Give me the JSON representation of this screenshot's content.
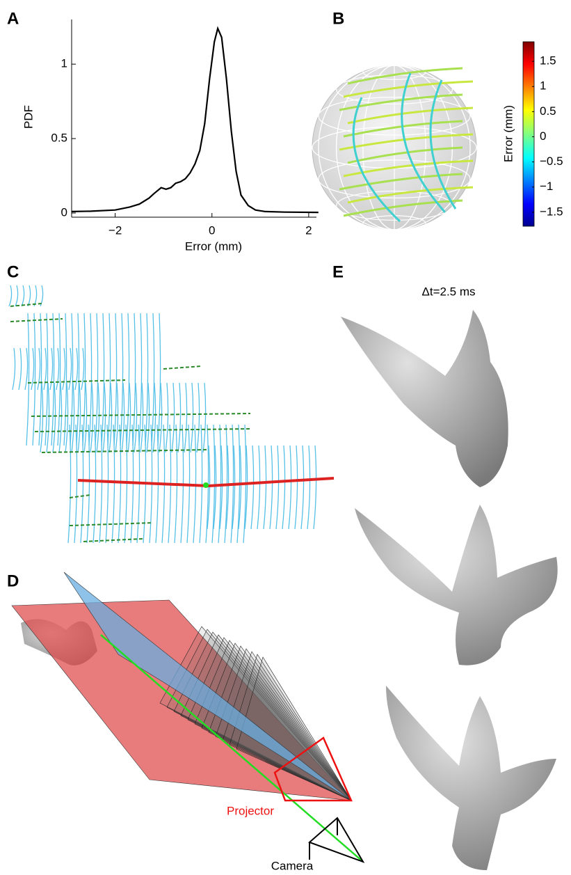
{
  "panels": {
    "a": "A",
    "b": "B",
    "c": "C",
    "d": "D",
    "e": "E"
  },
  "chart_data": [
    {
      "type": "line",
      "y_label": "PDF",
      "x_label": "Error (mm)",
      "color": "#000000",
      "x": [
        -2.9,
        -2.5,
        -2.0,
        -1.7,
        -1.5,
        -1.3,
        -1.2,
        -1.05,
        -0.95,
        -0.85,
        -0.75,
        -0.65,
        -0.55,
        -0.45,
        -0.35,
        -0.25,
        -0.15,
        -0.05,
        0.05,
        0.12,
        0.2,
        0.3,
        0.4,
        0.5,
        0.6,
        0.75,
        0.9,
        1.1,
        1.5,
        2.2
      ],
      "values": [
        0.01,
        0.012,
        0.02,
        0.04,
        0.06,
        0.1,
        0.13,
        0.17,
        0.16,
        0.17,
        0.2,
        0.21,
        0.23,
        0.27,
        0.33,
        0.42,
        0.6,
        0.9,
        1.15,
        1.24,
        1.18,
        0.9,
        0.55,
        0.28,
        0.12,
        0.05,
        0.02,
        0.01,
        0.006,
        0.004
      ],
      "xlim": [
        -2.9,
        2.16
      ],
      "ylim": [
        0,
        1.3
      ],
      "xticks": [
        {
          "value": -2,
          "label": "−2"
        },
        0,
        2
      ],
      "yticks": [
        0,
        0.5,
        1
      ]
    },
    {
      "type": "colorbar",
      "label": "Error (mm)",
      "ylim": [
        -1.78,
        1.89
      ],
      "yticks": [
        1.5,
        1,
        0.5,
        0,
        {
          "value": -0.5,
          "label": "−0.5"
        },
        {
          "value": -1,
          "label": "−1"
        },
        {
          "value": -1.5,
          "label": "−1.5"
        }
      ]
    }
  ],
  "panel_e": {
    "time_label": "Δt=2.5 ms"
  },
  "panel_d": {
    "projector_label": "Projector",
    "camera_label": "Camera"
  }
}
